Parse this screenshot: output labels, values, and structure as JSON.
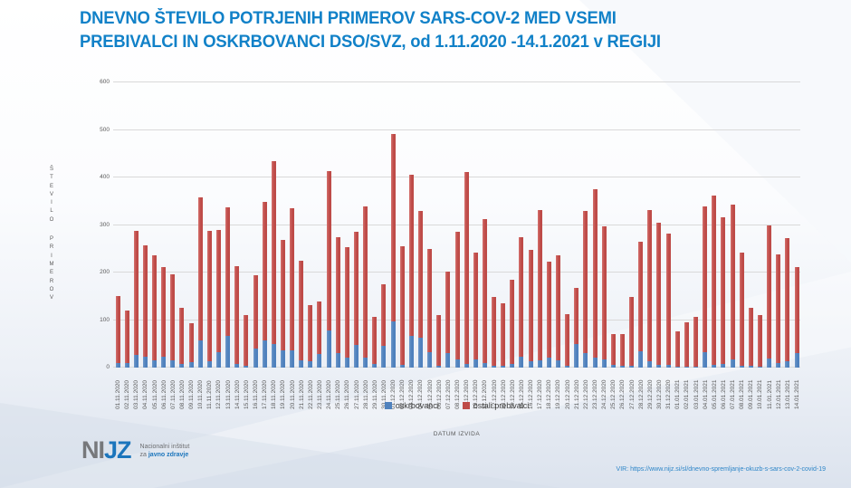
{
  "title_line1": "DNEVNO ŠTEVILO POTRJENIH PRIMEROV SARS-COV-2 MED VSEMI",
  "title_line2": "PREBIVALCI IN OSKRBOVANCI DSO/SVZ, od 1.11.2020 -14.1.2021 v REGIJI",
  "colors": {
    "title": "#1181c8",
    "oskrbovanci": "#4f81bd",
    "ostali_prebivalci": "#be4b48",
    "gridline": "#d9d9d9",
    "axis_text": "#595959"
  },
  "chart_data": {
    "type": "bar",
    "stacked": true,
    "title": "",
    "xlabel": "DATUM IZVIDA",
    "ylabel": "ŠTEVILO PRIMEROV",
    "ylim": [
      0,
      600
    ],
    "yticks": [
      0,
      100,
      200,
      300,
      400,
      500,
      600
    ],
    "grid": true,
    "legend_position": "bottom",
    "categories": [
      "01.11.2020",
      "02.11.2020",
      "03.11.2020",
      "04.11.2020",
      "05.11.2020",
      "06.11.2020",
      "07.11.2020",
      "08.11.2020",
      "09.11.2020",
      "10.11.2020",
      "11.11.2020",
      "12.11.2020",
      "13.11.2020",
      "14.11.2020",
      "15.11.2020",
      "16.11.2020",
      "17.11.2020",
      "18.11.2020",
      "19.11.2020",
      "20.11.2020",
      "21.11.2020",
      "22.11.2020",
      "23.11.2020",
      "24.11.2020",
      "25.11.2020",
      "26.11.2020",
      "27.11.2020",
      "28.11.2020",
      "29.11.2020",
      "30.11.2020",
      "01.12.2020",
      "02.12.2020",
      "03.12.2020",
      "04.12.2020",
      "05.12.2020",
      "06.12.2020",
      "07.12.2020",
      "08.12.2020",
      "09.12.2020",
      "10.12.2020",
      "11.12.2020",
      "12.12.2020",
      "13.12.2020",
      "14.12.2020",
      "15.12.2020",
      "16.12.2020",
      "17.12.2020",
      "18.12.2020",
      "19.12.2020",
      "20.12.2020",
      "21.12.2020",
      "22.12.2020",
      "23.12.2020",
      "24.12.2020",
      "25.12.2020",
      "26.12.2020",
      "27.12.2020",
      "28.12.2020",
      "29.12.2020",
      "30.12.2020",
      "31.12.2020",
      "01.01.2021",
      "02.01.2021",
      "03.01.2021",
      "04.01.2021",
      "05.01.2021",
      "06.01.2021",
      "07.01.2021",
      "08.01.2021",
      "09.01.2021",
      "10.01.2021",
      "11.01.2021",
      "12.01.2021",
      "13.01.2021",
      "14.01.2021"
    ],
    "series": [
      {
        "name": "oskrbovanci",
        "color": "#4f81bd",
        "values": [
          9,
          10,
          26,
          23,
          15,
          23,
          16,
          8,
          12,
          58,
          13,
          32,
          66,
          8,
          4,
          40,
          58,
          50,
          36,
          37,
          15,
          13,
          28,
          78,
          30,
          21,
          47,
          21,
          8,
          45,
          97,
          5,
          67,
          62,
          32,
          3,
          30,
          18,
          8,
          18,
          10,
          3,
          4,
          8,
          23,
          13,
          15,
          21,
          15,
          3,
          50,
          30,
          21,
          17,
          5,
          4,
          4,
          35,
          13,
          5,
          5,
          2,
          2,
          2,
          32,
          5,
          8,
          18,
          4,
          4,
          2,
          20,
          10,
          13,
          30
        ]
      },
      {
        "name": "ostali prebivalci",
        "color": "#be4b48",
        "values": [
          141,
          110,
          262,
          235,
          221,
          189,
          180,
          118,
          82,
          300,
          275,
          258,
          272,
          206,
          106,
          154,
          290,
          384,
          232,
          298,
          209,
          119,
          112,
          336,
          245,
          232,
          239,
          319,
          98,
          130,
          394,
          251,
          339,
          268,
          218,
          107,
          171,
          268,
          403,
          224,
          302,
          145,
          132,
          176,
          252,
          234,
          316,
          201,
          221,
          109,
          118,
          300,
          354,
          280,
          66,
          66,
          144,
          229,
          318,
          299,
          276,
          75,
          93,
          104,
          308,
          356,
          309,
          324,
          238,
          121,
          108,
          279,
          229,
          260,
          182
        ]
      }
    ]
  },
  "footer": {
    "logo_ni": "NI",
    "logo_jz": "JZ",
    "logo_line1": "Nacionalni inštitut",
    "logo_line2_prefix": "za ",
    "logo_line2_main": "javno zdravje",
    "source": "VIR: https://www.nijz.si/sl/dnevno-spremljanje-okuzb-s-sars-cov-2-covid-19"
  }
}
